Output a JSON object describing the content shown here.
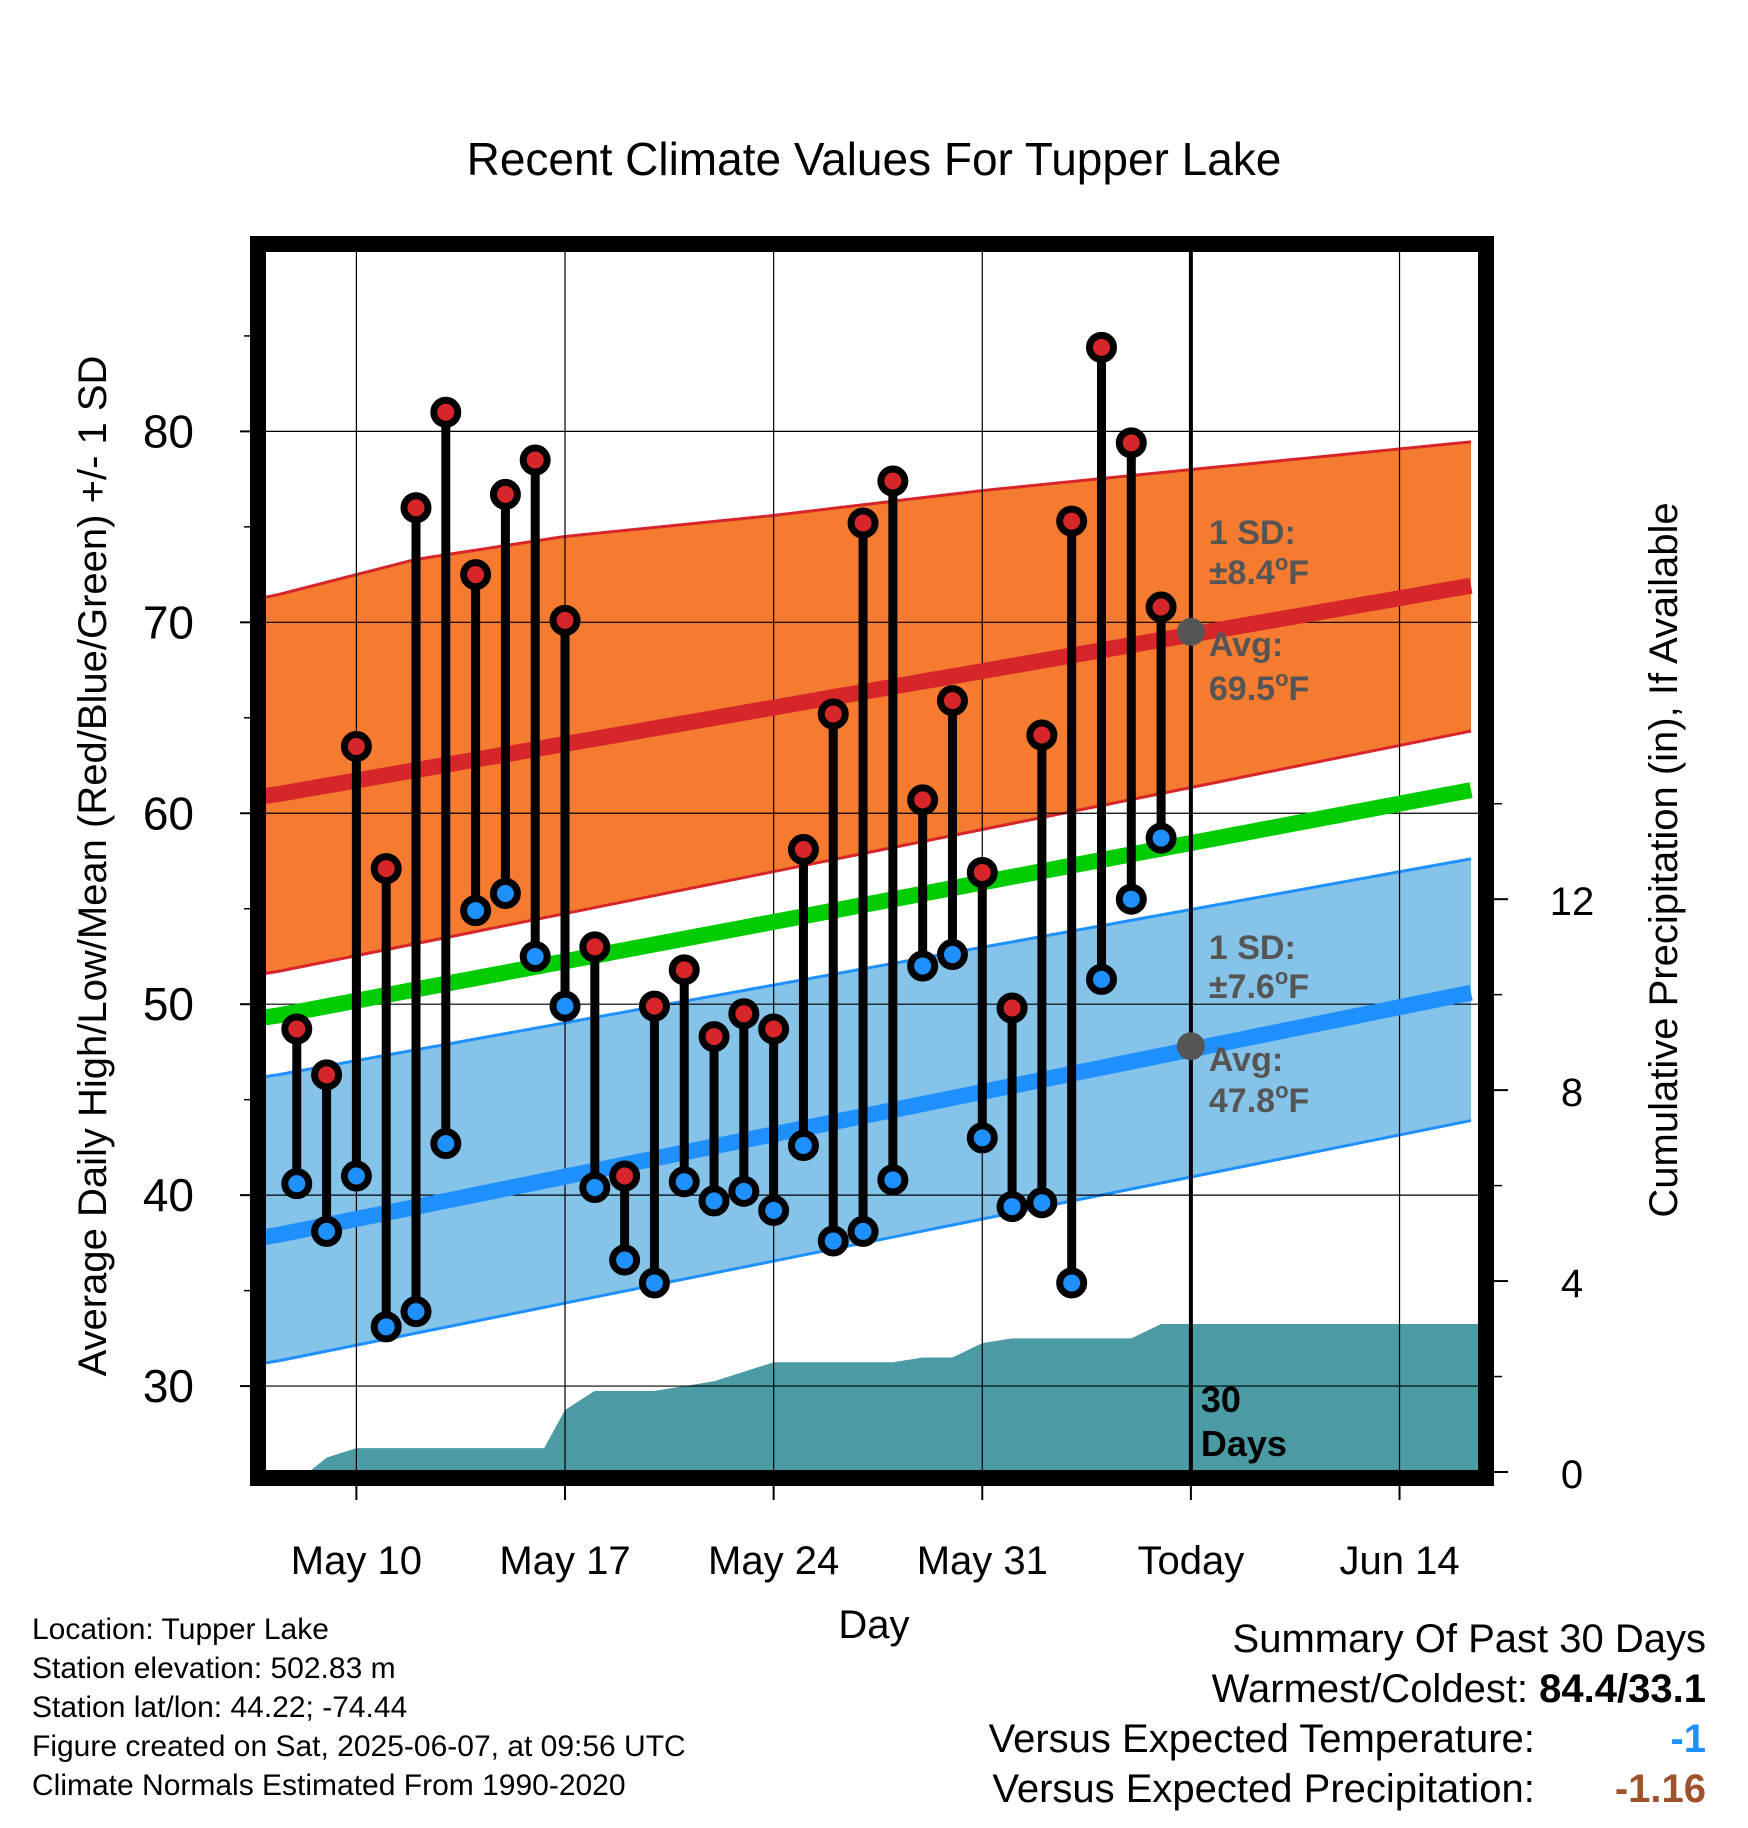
{
  "chart_data": {
    "type": "line",
    "title": "Recent Climate Values For Tupper Lake",
    "xlabel": "Day",
    "ylabel_left": "Average Daily High/Low/Mean (Red/Blue/Green) +/- 1 SD",
    "ylabel_right": "Cumulative Precipitation (in), If Available",
    "x_tick_labels": [
      "May 10",
      "May 17",
      "May 24",
      "May 31",
      "Today",
      "Jun 14"
    ],
    "x_tick_days": [
      10,
      17,
      24,
      31,
      38,
      45
    ],
    "x_range_days": [
      6.9,
      47.7
    ],
    "y_left_ticks": [
      30,
      40,
      50,
      60,
      70,
      80
    ],
    "y_left_range": [
      25.5,
      89.5
    ],
    "y_right_ticks": [
      0,
      4,
      8,
      12
    ],
    "y_right_range": [
      0,
      25.6
    ],
    "today_day": 38,
    "today_marker_label": "30 Days",
    "normals": {
      "high_avg": {
        "x": [
          7,
          47.7
        ],
        "y": [
          60.9,
          72.0
        ]
      },
      "high_upper": {
        "x": [
          7,
          12,
          17,
          24,
          31,
          38,
          47.7
        ],
        "y": [
          71.3,
          73.3,
          74.5,
          75.6,
          76.9,
          78.0,
          79.5
        ]
      },
      "high_lower": {
        "x": [
          7,
          47.7
        ],
        "y": [
          51.6,
          64.4
        ]
      },
      "mean_avg": {
        "x": [
          7,
          47.7
        ],
        "y": [
          49.3,
          61.3
        ]
      },
      "low_avg": {
        "x": [
          7,
          47.7
        ],
        "y": [
          37.8,
          50.7
        ]
      },
      "low_upper": {
        "x": [
          7,
          47.7
        ],
        "y": [
          46.2,
          57.7
        ]
      },
      "low_lower": {
        "x": [
          7,
          47.7
        ],
        "y": [
          31.2,
          44.0
        ]
      }
    },
    "observations": [
      {
        "day": 8,
        "high": 48.7,
        "low": 40.6
      },
      {
        "day": 9,
        "high": 46.3,
        "low": 38.1
      },
      {
        "day": 10,
        "high": 63.5,
        "low": 41.0
      },
      {
        "day": 11,
        "high": 57.1,
        "low": 33.1
      },
      {
        "day": 12,
        "high": 76.0,
        "low": 33.9
      },
      {
        "day": 13,
        "high": 81.0,
        "low": 42.7
      },
      {
        "day": 14,
        "high": 72.5,
        "low": 54.9
      },
      {
        "day": 15,
        "high": 76.7,
        "low": 55.8
      },
      {
        "day": 16,
        "high": 78.5,
        "low": 52.5
      },
      {
        "day": 17,
        "high": 70.1,
        "low": 49.9
      },
      {
        "day": 18,
        "high": 53.0,
        "low": 40.4
      },
      {
        "day": 19,
        "high": 41.0,
        "low": 36.6
      },
      {
        "day": 20,
        "high": 49.9,
        "low": 35.4
      },
      {
        "day": 21,
        "high": 51.8,
        "low": 40.7
      },
      {
        "day": 22,
        "high": 48.3,
        "low": 39.7
      },
      {
        "day": 23,
        "high": 49.5,
        "low": 40.2
      },
      {
        "day": 24,
        "high": 48.7,
        "low": 39.2
      },
      {
        "day": 25,
        "high": 58.1,
        "low": 42.6
      },
      {
        "day": 26,
        "high": 65.2,
        "low": 37.6
      },
      {
        "day": 27,
        "high": 75.2,
        "low": 38.1
      },
      {
        "day": 28,
        "high": 77.4,
        "low": 40.8
      },
      {
        "day": 29,
        "high": 60.7,
        "low": 52.0
      },
      {
        "day": 30,
        "high": 65.9,
        "low": 52.6
      },
      {
        "day": 31,
        "high": 56.9,
        "low": 43.0
      },
      {
        "day": 32,
        "high": 49.8,
        "low": 39.4
      },
      {
        "day": 33,
        "high": 64.1,
        "low": 39.6
      },
      {
        "day": 34,
        "high": 75.3,
        "low": 35.4
      },
      {
        "day": 35,
        "high": 84.4,
        "low": 51.3
      },
      {
        "day": 36,
        "high": 79.4,
        "low": 55.5
      },
      {
        "day": 37,
        "high": 70.8,
        "low": 58.7
      }
    ],
    "precip_cumulative": {
      "x": [
        8.4,
        9,
        10,
        16.3,
        17,
        18,
        20,
        21,
        22,
        23,
        24,
        28,
        29,
        30,
        31,
        32,
        36,
        37,
        47.7
      ],
      "y": [
        0.0,
        0.3,
        0.5,
        0.5,
        1.3,
        1.7,
        1.7,
        1.8,
        1.9,
        2.1,
        2.3,
        2.3,
        2.4,
        2.4,
        2.7,
        2.8,
        2.8,
        3.1,
        3.1
      ]
    },
    "annotations": {
      "high_sd": {
        "label": "1 SD:",
        "value": "±8.4",
        "unit": "oF"
      },
      "high_avg": {
        "label": "Avg:",
        "value": "69.5",
        "unit": "oF",
        "y": 69.5
      },
      "low_sd": {
        "label": "1 SD:",
        "value": "±7.6",
        "unit": "oF"
      },
      "low_avg": {
        "label": "Avg:",
        "value": "47.8",
        "unit": "oF",
        "y": 47.8
      }
    },
    "colors": {
      "high_band": "#f47b2f",
      "high_line": "#d6262a",
      "mean_line": "#00cc00",
      "low_band": "#85c3e8",
      "low_line": "#1e90ff",
      "precip": "#4a9ba3",
      "high_dot": "#d6262a",
      "low_dot": "#1e90ff",
      "annotation_text": "#555555"
    }
  },
  "info": {
    "location": "Location: Tupper Lake",
    "elevation": "Station elevation: 502.83 m",
    "latlon": "Station lat/lon: 44.22; -74.44",
    "created": "Figure created on Sat, 2025-06-07, at 09:56 UTC",
    "normals": "Climate Normals Estimated From 1990-2020"
  },
  "summary": {
    "title": "Summary Of Past 30 Days",
    "warmest_label": "Warmest/Coldest:",
    "warmest_value": "84.4/33.1",
    "temp_label": "Versus Expected Temperature:",
    "temp_value": "-1",
    "temp_color": "#1e90ff",
    "precip_label": "Versus Expected Precipitation:",
    "precip_value": "-1.16",
    "precip_color": "#a0522d"
  }
}
